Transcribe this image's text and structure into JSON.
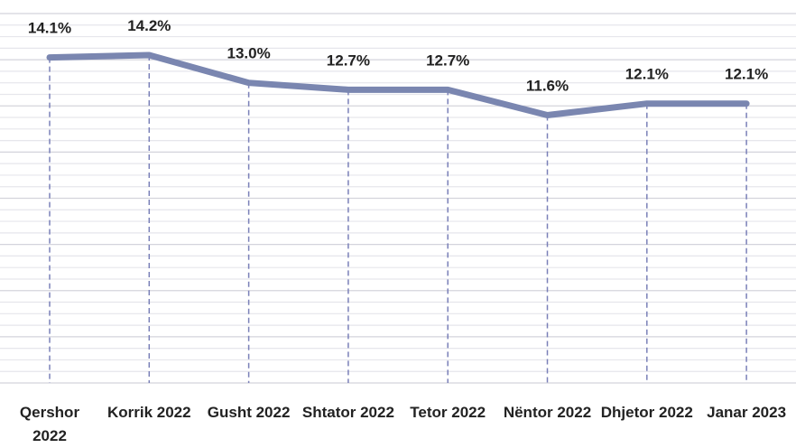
{
  "chart_data": {
    "type": "line",
    "categories": [
      "Qershor 2022",
      "Korrik 2022",
      "Gusht 2022",
      "Shtator 2022",
      "Tetor 2022",
      "Nëntor 2022",
      "Dhjetor 2022",
      "Janar 2023"
    ],
    "series": [
      {
        "color": "#7a86b0",
        "values": [
          14.1,
          14.2,
          13.0,
          12.7,
          12.7,
          11.6,
          12.1,
          12.1
        ],
        "value_labels": [
          "14.1%",
          "14.2%",
          "13.0%",
          "12.7%",
          "12.7%",
          "11.6%",
          "12.1%",
          "12.1%"
        ]
      }
    ],
    "ylim": [
      0,
      16
    ],
    "yticks": [
      0,
      0.5,
      1,
      1.5,
      2,
      2.5,
      3,
      3.5,
      4,
      4.5,
      5,
      5.5,
      6,
      6.5,
      7,
      7.5,
      8,
      8.5,
      9,
      9.5,
      10,
      10.5,
      11,
      11.5,
      12,
      12.5,
      13,
      13.5,
      14,
      14.5,
      15,
      15.5,
      16
    ],
    "grid": true
  }
}
